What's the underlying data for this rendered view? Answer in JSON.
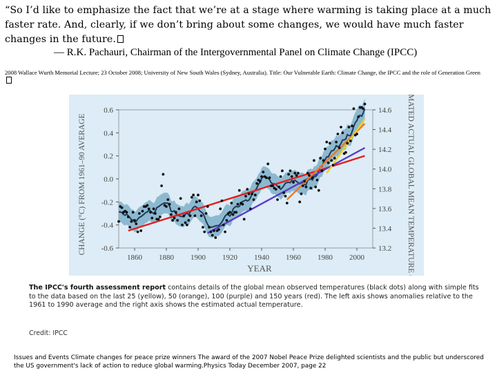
{
  "quote": {
    "text": "“So I’d like to emphasize the fact that we’re at a stage where warming is taking place at a much faster rate.  And, clearly, if we don’t bring about some changes, we would have much faster changes in the future.",
    "glyph": "replacement-box"
  },
  "attribution": "— R.K. Pachauri, Chairman of the Intergovernmental Panel on Climate Change (IPCC)",
  "lecture": "2008 Wallace Wurth Memorial Lecture; 23 October 2008; University of New South Wales (Sydney, Australia). Title: Our Vulnerable Earth: Climate Change, the IPCC and the role of Generation Green",
  "chart_data": {
    "type": "line",
    "title": "",
    "xlabel": "YEAR",
    "ylabel": "CHANGE (°C) FROM 1961–90 AVERAGE",
    "ylabel_right": "ESTIMATED ACTUAL GLOBAL MEAN TEMPERATURE (°C)",
    "xlim": [
      1850,
      2010
    ],
    "ylim": [
      -0.6,
      0.6
    ],
    "ylim_right": [
      13.2,
      14.6
    ],
    "x_ticks": [
      "1860",
      "1880",
      "1900",
      "1920",
      "1940",
      "1960",
      "1980",
      "2000"
    ],
    "y_ticks": [
      "0.6",
      "0.4",
      "0.2",
      "0.0",
      "-0.2",
      "-0.4",
      "-0.6"
    ],
    "y_ticks_right": [
      "14.6",
      "14.4",
      "14.2",
      "14.0",
      "13.8",
      "13.6",
      "13.4",
      "13.2"
    ],
    "series": [
      {
        "name": "annual anomalies (black dots)",
        "x": [
          1850,
          1851,
          1852,
          1853,
          1854,
          1855,
          1856,
          1857,
          1858,
          1859,
          1860,
          1861,
          1862,
          1863,
          1864,
          1865,
          1866,
          1867,
          1868,
          1869,
          1870,
          1871,
          1872,
          1873,
          1874,
          1875,
          1876,
          1877,
          1878,
          1879,
          1880,
          1881,
          1882,
          1883,
          1884,
          1885,
          1886,
          1887,
          1888,
          1889,
          1890,
          1891,
          1892,
          1893,
          1894,
          1895,
          1896,
          1897,
          1898,
          1899,
          1900,
          1901,
          1902,
          1903,
          1904,
          1905,
          1906,
          1907,
          1908,
          1909,
          1910,
          1911,
          1912,
          1913,
          1914,
          1915,
          1916,
          1917,
          1918,
          1919,
          1920,
          1921,
          1922,
          1923,
          1924,
          1925,
          1926,
          1927,
          1928,
          1929,
          1930,
          1931,
          1932,
          1933,
          1934,
          1935,
          1936,
          1937,
          1938,
          1939,
          1940,
          1941,
          1942,
          1943,
          1944,
          1945,
          1946,
          1947,
          1948,
          1949,
          1950,
          1951,
          1952,
          1953,
          1954,
          1955,
          1956,
          1957,
          1958,
          1959,
          1960,
          1961,
          1962,
          1963,
          1964,
          1965,
          1966,
          1967,
          1968,
          1969,
          1970,
          1971,
          1972,
          1973,
          1974,
          1975,
          1976,
          1977,
          1978,
          1979,
          1980,
          1981,
          1982,
          1983,
          1984,
          1985,
          1986,
          1987,
          1988,
          1989,
          1990,
          1991,
          1992,
          1993,
          1994,
          1995,
          1996,
          1997,
          1998,
          1999,
          2000,
          2001,
          2002,
          2003,
          2004,
          2005
        ],
        "y": [
          -0.37,
          -0.24,
          -0.25,
          -0.29,
          -0.28,
          -0.29,
          -0.33,
          -0.42,
          -0.37,
          -0.29,
          -0.36,
          -0.39,
          -0.46,
          -0.3,
          -0.45,
          -0.28,
          -0.24,
          -0.24,
          -0.23,
          -0.26,
          -0.29,
          -0.34,
          -0.26,
          -0.3,
          -0.35,
          -0.35,
          -0.33,
          -0.06,
          0.04,
          -0.23,
          -0.24,
          -0.18,
          -0.22,
          -0.31,
          -0.36,
          -0.34,
          -0.29,
          -0.36,
          -0.26,
          -0.17,
          -0.4,
          -0.32,
          -0.38,
          -0.4,
          -0.36,
          -0.32,
          -0.16,
          -0.14,
          -0.32,
          -0.2,
          -0.14,
          -0.19,
          -0.32,
          -0.42,
          -0.46,
          -0.3,
          -0.24,
          -0.42,
          -0.46,
          -0.49,
          -0.45,
          -0.51,
          -0.45,
          -0.44,
          -0.26,
          -0.19,
          -0.4,
          -0.46,
          -0.36,
          -0.3,
          -0.29,
          -0.21,
          -0.31,
          -0.29,
          -0.29,
          -0.22,
          -0.1,
          -0.21,
          -0.22,
          -0.35,
          -0.15,
          -0.09,
          -0.13,
          -0.26,
          -0.13,
          -0.18,
          -0.14,
          -0.04,
          -0.01,
          -0.02,
          0.02,
          0.06,
          0.02,
          0.01,
          0.13,
          0.01,
          -0.06,
          -0.06,
          -0.08,
          -0.09,
          -0.18,
          -0.07,
          0.02,
          0.07,
          -0.12,
          -0.15,
          -0.21,
          0.04,
          0.07,
          0.02,
          -0.03,
          0.05,
          0.03,
          0.05,
          -0.2,
          -0.13,
          -0.06,
          -0.02,
          -0.07,
          0.05,
          0.03,
          -0.08,
          0.01,
          0.16,
          -0.07,
          -0.01,
          -0.1,
          0.18,
          0.07,
          0.16,
          0.26,
          0.32,
          0.14,
          0.31,
          0.16,
          0.12,
          0.18,
          0.32,
          0.39,
          0.27,
          0.45,
          0.4,
          0.22,
          0.23,
          0.31,
          0.45,
          0.33,
          0.46,
          0.61,
          0.38,
          0.39,
          0.54,
          0.62,
          0.62,
          0.61,
          0.65
        ]
      },
      {
        "name": "smoothed curve",
        "color": "#1e3c5a"
      },
      {
        "name": "150 years (red)",
        "color": "#e02020",
        "x": [
          1856,
          2005
        ],
        "y": [
          -0.45,
          0.2
        ]
      },
      {
        "name": "100 years (purple)",
        "color": "#5a3cc8",
        "x": [
          1906,
          2005
        ],
        "y": [
          -0.47,
          0.27
        ]
      },
      {
        "name": "50 years (orange)",
        "color": "#f07820",
        "x": [
          1956,
          2005
        ],
        "y": [
          -0.18,
          0.48
        ]
      },
      {
        "name": "25 years (yellow)",
        "color": "#f0d020",
        "x": [
          1981,
          2005
        ],
        "y": [
          0.05,
          0.52
        ]
      }
    ]
  },
  "caption": {
    "bold": "The IPCC's fourth assessment report",
    "rest": " contains details of the global mean observed temperatures (black dots) along with simple fits to the data based on the last 25 (yellow), 50 (orange), 100 (purple) and 150 years (red). The left axis shows anomalies relative to the 1961 to 1990 average and the right axis shows the estimated actual temperature."
  },
  "credit": "Credit: IPCC",
  "source": "Issues and Events Climate changes for peace prize winners The award of the 2007 Nobel Peace Prize delighted scientists and the public but underscored the US government's lack of action to reduce global warming.Physics Today December 2007, page 22"
}
